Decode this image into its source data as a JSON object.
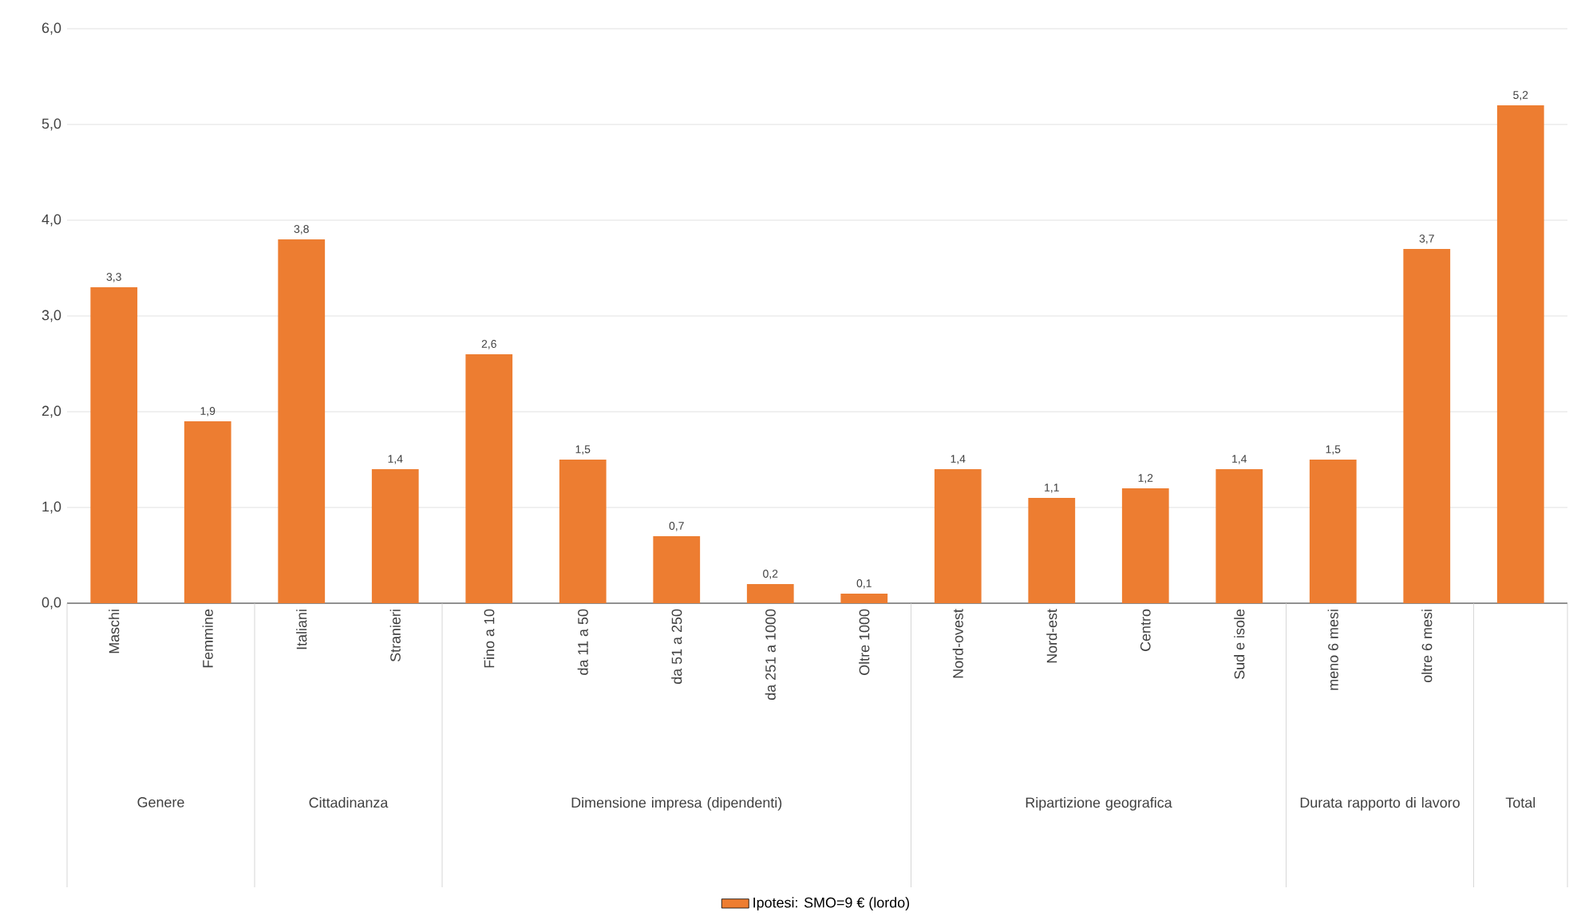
{
  "chart_data": {
    "type": "bar",
    "categories": [
      "Maschi",
      "Femmine",
      "Italiani",
      "Stranieri",
      "Fino a 10",
      "da 11 a 50",
      "da 51 a 250",
      "da 251 a 1000",
      "Oltre 1000",
      "Nord-ovest",
      "Nord-est",
      "Centro",
      "Sud e isole",
      "meno 6 mesi",
      "oltre 6 mesi",
      null
    ],
    "series": [
      {
        "name": "Ipotesi: SMO=9 € (lordo)",
        "color": "#ed7d31",
        "values": [
          3.3,
          1.9,
          3.8,
          1.4,
          2.6,
          1.5,
          0.7,
          0.2,
          0.1,
          1.4,
          1.1,
          1.2,
          1.4,
          1.5,
          3.7,
          5.2
        ],
        "value_labels": [
          "3,3",
          "1,9",
          "3,8",
          "1,4",
          "2,6",
          "1,5",
          "0,7",
          "0,2",
          "0,1",
          "1,4",
          "1,1",
          "1,2",
          "1,4",
          "1,5",
          "3,7",
          "5,2"
        ]
      }
    ],
    "ylim": [
      0,
      6
    ],
    "yticks": [
      {
        "value": 0,
        "label": "0,0"
      },
      {
        "value": 1,
        "label": "1,0"
      },
      {
        "value": 2,
        "label": "2,0"
      },
      {
        "value": 3,
        "label": "3,0"
      },
      {
        "value": 4,
        "label": "4,0"
      },
      {
        "value": 5,
        "label": "5,0"
      },
      {
        "value": 6,
        "label": "6,0"
      }
    ],
    "grid": "y",
    "legend": "bottom",
    "annotations": [
      "Genere",
      "Cittadinanza",
      "Dimensione impresa (dipendenti)",
      "Ripartizione geografica",
      "Durata rapporto di lavoro",
      "Total"
    ]
  }
}
